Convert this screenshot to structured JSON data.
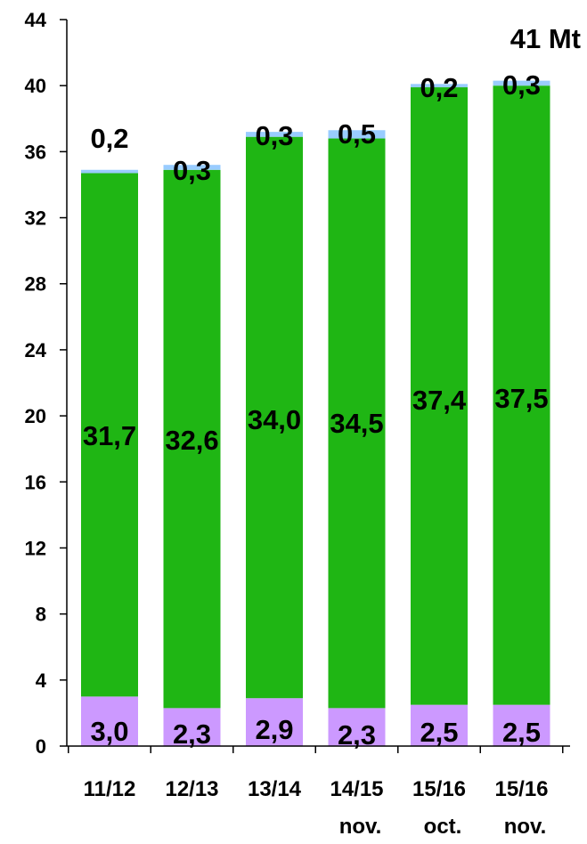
{
  "chart_data": {
    "type": "bar",
    "stacked": true,
    "categories": [
      "11/12",
      "12/13",
      "13/14",
      "14/15",
      "15/16",
      "15/16"
    ],
    "category_sublabels": [
      "",
      "",
      "",
      "nov.",
      "oct.",
      "nov."
    ],
    "series": [
      {
        "values": [
          3.0,
          2.3,
          2.9,
          2.3,
          2.5,
          2.5
        ],
        "labels": [
          "3,0",
          "2,3",
          "2,9",
          "2,3",
          "2,5",
          "2,5"
        ],
        "color": "#cc99ff"
      },
      {
        "values": [
          31.7,
          32.6,
          34.0,
          34.5,
          37.4,
          37.5
        ],
        "labels": [
          "31,7",
          "32,6",
          "34,0",
          "34,5",
          "37,4",
          "37,5"
        ],
        "color": "#1fb614"
      },
      {
        "values": [
          0.2,
          0.3,
          0.3,
          0.5,
          0.2,
          0.3
        ],
        "labels": [
          "0,2",
          "0,3",
          "0,3",
          "0,5",
          "0,2",
          "0,3"
        ],
        "color": "#99ccff"
      }
    ],
    "annotation": "41 Mt",
    "ylim": [
      0,
      44
    ],
    "yticks": [
      0,
      4,
      8,
      12,
      16,
      20,
      24,
      28,
      32,
      36,
      40,
      44
    ],
    "ytick_labels": [
      "0",
      "4",
      "8",
      "12",
      "16",
      "20",
      "24",
      "28",
      "32",
      "36",
      "40",
      "44"
    ],
    "grid": false,
    "legend": "none",
    "axis_color": "#000000"
  }
}
